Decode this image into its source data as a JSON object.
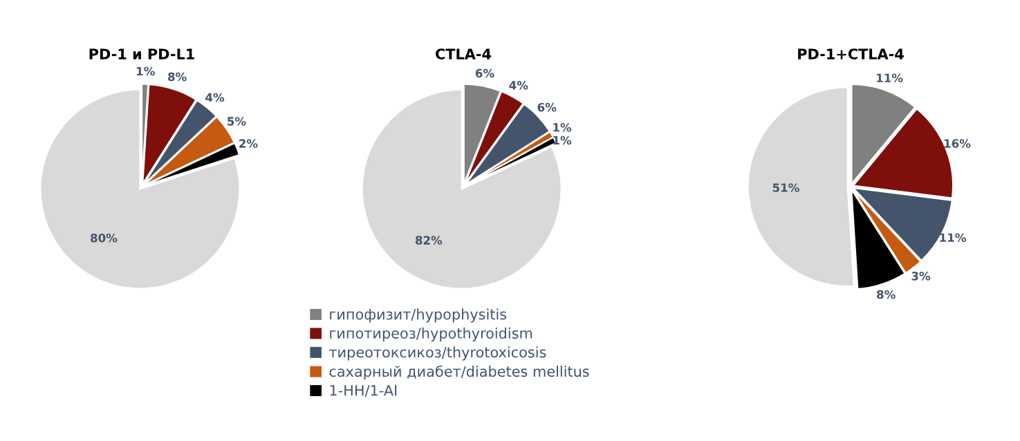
{
  "chart_data": [
    {
      "type": "pie",
      "title": "PD-1 и PD-L1",
      "categories": [
        "гипофизит/hypophysitis",
        "гипотиреоз/hypothyroidism",
        "тиреотоксикоз/thyrotoxicosis",
        "сахарный диабет/diabetes mellitus",
        "1-НН/1-AI",
        null
      ],
      "values": [
        1,
        8,
        4,
        5,
        2,
        80
      ],
      "colors": [
        "#808080",
        "#7f0f0a",
        "#44546a",
        "#c55a11",
        "#000000",
        "#d9d9d9"
      ],
      "value_labels": [
        "1%",
        "8%",
        "4%",
        "5%",
        "2%",
        "80%"
      ],
      "legend": "bottom right"
    },
    {
      "type": "pie",
      "title": "CTLA-4",
      "categories": [
        null,
        null,
        null,
        null,
        null,
        null
      ],
      "values": [
        6,
        4,
        6,
        1,
        1,
        82
      ],
      "colors": [
        "#808080",
        "#7f0f0a",
        "#44546a",
        "#c55a11",
        "#000000",
        "#d9d9d9"
      ],
      "value_labels": [
        "6%",
        "4%",
        "6%",
        "1%",
        "1%",
        "82%"
      ]
    },
    {
      "type": "pie",
      "title": "PD-1+CTLA-4",
      "categories": [
        null,
        null,
        null,
        null,
        null,
        null
      ],
      "values": [
        11,
        16,
        11,
        3,
        8,
        51
      ],
      "colors": [
        "#808080",
        "#7f0f0a",
        "#44546a",
        "#c55a11",
        "#000000",
        "#d9d9d9"
      ],
      "value_labels": [
        "11%",
        "16%",
        "11%",
        "3%",
        "8%",
        "51%"
      ]
    }
  ]
}
